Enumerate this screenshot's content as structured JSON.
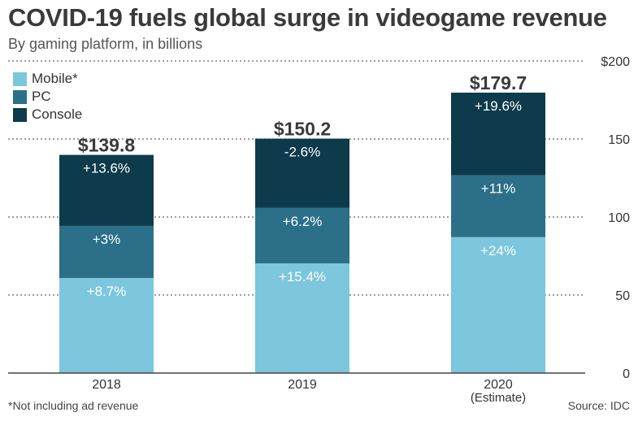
{
  "title": "COVID-19 fuels global surge in videogame revenue",
  "subtitle": "By gaming platform, in billions",
  "footnote": "*Not including ad revenue",
  "source": "Source: IDC",
  "colors": {
    "mobile": "#7cc6de",
    "pc": "#2b7088",
    "console": "#0e3b4b",
    "grid": "#666666",
    "text": "#333333"
  },
  "chart_data": {
    "type": "bar",
    "stacked": true,
    "title": "COVID-19 fuels global surge in videogame revenue",
    "subtitle": "By gaming platform, in billions",
    "categories": [
      "2018",
      "2019",
      "2020"
    ],
    "category_sublabels": [
      "",
      "",
      "(Estimate)"
    ],
    "totals": [
      139.8,
      150.2,
      179.7
    ],
    "total_labels": [
      "$139.8",
      "$150.2",
      "$179.7"
    ],
    "series": [
      {
        "name": "Mobile*",
        "color": "#7cc6de",
        "values": [
          60.9,
          70.3,
          87.1
        ],
        "labels": [
          "+8.7%",
          "+15.4%",
          "+24%"
        ]
      },
      {
        "name": "PC",
        "color": "#2b7088",
        "values": [
          33.4,
          35.5,
          39.6
        ],
        "labels": [
          "+3%",
          "+6.2%",
          "+11%"
        ]
      },
      {
        "name": "Console",
        "color": "#0e3b4b",
        "values": [
          45.5,
          44.4,
          53.0
        ],
        "labels": [
          "+13.6%",
          "-2.6%",
          "+19.6%"
        ]
      }
    ],
    "ylim": [
      0,
      200
    ],
    "yticks": [
      0,
      50,
      100,
      150,
      200
    ],
    "ytick_labels": [
      "0",
      "50",
      "100",
      "150",
      "$200"
    ],
    "grid": true,
    "legend": "top-left"
  }
}
